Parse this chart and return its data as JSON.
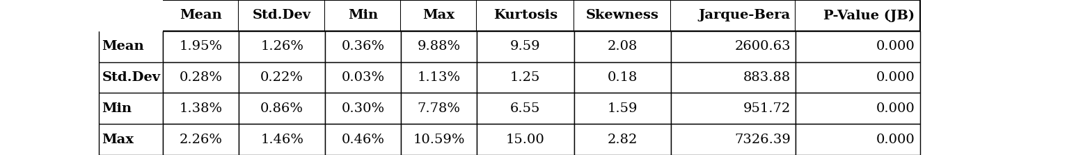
{
  "col_headers": [
    "Mean",
    "Std.Dev",
    "Min",
    "Max",
    "Kurtosis",
    "Skewness",
    "Jarque-Bera",
    "P-Value (JB)"
  ],
  "row_labels": [
    "Mean",
    "Std.Dev",
    "Min",
    "Max"
  ],
  "rows": [
    [
      "1.95%",
      "1.26%",
      "0.36%",
      "9.88%",
      "9.59",
      "2.08",
      "2600.63",
      "0.000"
    ],
    [
      "0.28%",
      "0.22%",
      "0.03%",
      "1.13%",
      "1.25",
      "0.18",
      "883.88",
      "0.000"
    ],
    [
      "1.38%",
      "0.86%",
      "0.30%",
      "7.78%",
      "6.55",
      "1.59",
      "951.72",
      "0.000"
    ],
    [
      "2.26%",
      "1.46%",
      "0.46%",
      "10.59%",
      "15.00",
      "2.82",
      "7326.39",
      "0.000"
    ]
  ],
  "background_color": "#ffffff",
  "line_color": "#000000",
  "text_color": "#000000",
  "header_fontsize": 14,
  "cell_fontsize": 14,
  "figsize": [
    15.56,
    2.24
  ],
  "dpi": 100
}
